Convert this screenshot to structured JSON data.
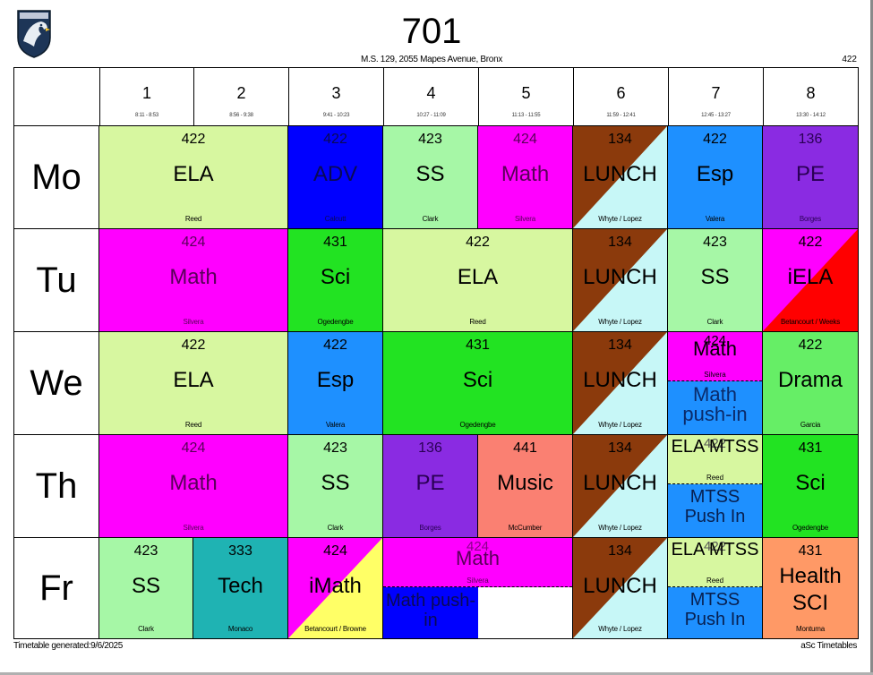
{
  "header": {
    "title": "701",
    "subtitle": "M.S. 129, 2055 Mapes Avenue, Bronx",
    "room": "422"
  },
  "periods": [
    {
      "num": "1",
      "time": "8:11 - 8:53"
    },
    {
      "num": "2",
      "time": "8:56 - 9:38"
    },
    {
      "num": "3",
      "time": "9:41 - 10:23"
    },
    {
      "num": "4",
      "time": "10:27 - 11:09"
    },
    {
      "num": "5",
      "time": "11:13 - 11:55"
    },
    {
      "num": "6",
      "time": "11:59 - 12:41"
    },
    {
      "num": "7",
      "time": "12:45 - 13:27"
    },
    {
      "num": "8",
      "time": "13:30 - 14:12"
    }
  ],
  "days": [
    "Mo",
    "Tu",
    "We",
    "Th",
    "Fr"
  ],
  "colors": {
    "ela": "#d7f7a0",
    "math": "#ff00ff",
    "adv": "#0000ff",
    "ss": "#a6f7a6",
    "lunch_dark": "#8b3a0c",
    "lunch_light": "#c7f7f7",
    "esp": "#1e90ff",
    "pe": "#8a2be2",
    "sci": "#22e322",
    "iela_red": "#ff0000",
    "drama": "#66ee66",
    "music": "#fa8072",
    "tech": "#1fb3b3",
    "imath_yellow": "#ffff66",
    "health": "#ff9966"
  },
  "schedule": {
    "mo": [
      {
        "room": "422",
        "subject": "ELA",
        "teacher": "Reed"
      },
      {
        "room": "422",
        "subject": "ADV",
        "teacher": "Calcutt"
      },
      {
        "room": "423",
        "subject": "SS",
        "teacher": "Clark"
      },
      {
        "room": "424",
        "subject": "Math",
        "teacher": "Silvera"
      },
      {
        "room": "134",
        "subject": "LUNCH",
        "teacher": "Whyte / Lopez"
      },
      {
        "room": "422",
        "subject": "Esp",
        "teacher": "Valera"
      },
      {
        "room": "136",
        "subject": "PE",
        "teacher": "Borges"
      }
    ],
    "tu": [
      {
        "room": "424",
        "subject": "Math",
        "teacher": "Silvera"
      },
      {
        "room": "431",
        "subject": "Sci",
        "teacher": "Ogedengbe"
      },
      {
        "room": "422",
        "subject": "ELA",
        "teacher": "Reed"
      },
      {
        "room": "134",
        "subject": "LUNCH",
        "teacher": "Whyte / Lopez"
      },
      {
        "room": "423",
        "subject": "SS",
        "teacher": "Clark"
      },
      {
        "room": "422",
        "subject": "iELA",
        "teacher": "Betancourt / Weeks"
      }
    ],
    "we": [
      {
        "room": "422",
        "subject": "ELA",
        "teacher": "Reed"
      },
      {
        "room": "422",
        "subject": "Esp",
        "teacher": "Valera"
      },
      {
        "room": "431",
        "subject": "Sci",
        "teacher": "Ogedengbe"
      },
      {
        "room": "134",
        "subject": "LUNCH",
        "teacher": "Whyte / Lopez"
      },
      {
        "room": "424",
        "subject": "Math",
        "teacher": "Silvera",
        "subject2": "Math push-in"
      },
      {
        "room": "422",
        "subject": "Drama",
        "teacher": "Garcia"
      }
    ],
    "th": [
      {
        "room": "424",
        "subject": "Math",
        "teacher": "Silvera"
      },
      {
        "room": "423",
        "subject": "SS",
        "teacher": "Clark"
      },
      {
        "room": "136",
        "subject": "PE",
        "teacher": "Borges"
      },
      {
        "room": "441",
        "subject": "Music",
        "teacher": "McCumber"
      },
      {
        "room": "134",
        "subject": "LUNCH",
        "teacher": "Whyte / Lopez"
      },
      {
        "room": "422",
        "subject": "ELA MTSS",
        "teacher": "Reed",
        "subject2": "MTSS Push In"
      },
      {
        "room": "431",
        "subject": "Sci",
        "teacher": "Ogedengbe"
      }
    ],
    "fr": [
      {
        "room": "423",
        "subject": "SS",
        "teacher": "Clark"
      },
      {
        "room": "333",
        "subject": "Tech",
        "teacher": "Monaco"
      },
      {
        "room": "424",
        "subject": "iMath",
        "teacher": "Betancourt / Browne"
      },
      {
        "room": "424",
        "subject": "Math",
        "teacher": "Silvera",
        "subject2": "Math push-in"
      },
      {
        "room": "134",
        "subject": "LUNCH",
        "teacher": "Whyte / Lopez"
      },
      {
        "room": "422",
        "subject": "ELA MTSS",
        "teacher": "Reed",
        "subject2": "MTSS Push In"
      },
      {
        "room": "431",
        "subject": "Health SCI",
        "teacher": "Montuma"
      }
    ]
  },
  "footer": {
    "generated": "Timetable generated:9/6/2025",
    "brand": "aSc Timetables"
  }
}
